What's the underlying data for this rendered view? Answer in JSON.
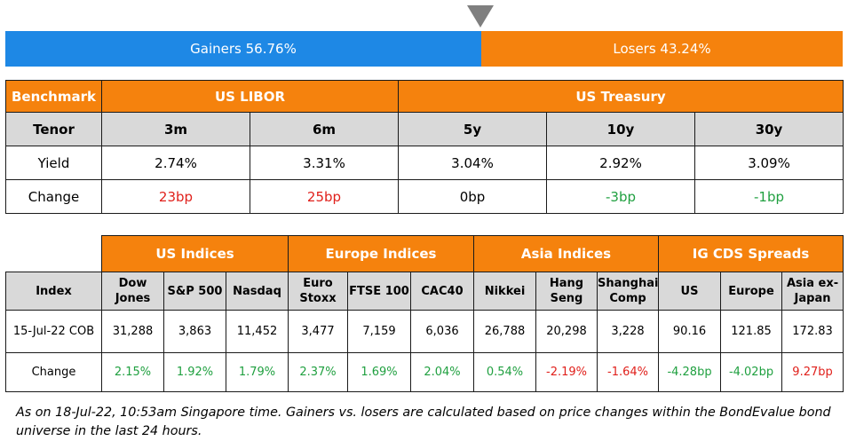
{
  "market_bar": {
    "gainers_label": "Gainers 56.76%",
    "losers_label": "Losers 43.24%",
    "gainers_fraction": 0.5676,
    "gainers_color": "#1e88e5",
    "losers_color": "#f5820d",
    "marker_icon": "triangle-down"
  },
  "rates_table": {
    "headers": {
      "benchmark": "Benchmark",
      "libor": "US LIBOR",
      "treasury": "US Treasury"
    },
    "tenor_label": "Tenor",
    "tenors": [
      "3m",
      "6m",
      "5y",
      "10y",
      "30y"
    ],
    "yield_label": "Yield",
    "yields": [
      "2.74%",
      "3.31%",
      "3.04%",
      "2.92%",
      "3.09%"
    ],
    "change_label": "Change",
    "changes": [
      "23bp",
      "25bp",
      "0bp",
      "-3bp",
      "-1bp"
    ]
  },
  "indices_table": {
    "groups": {
      "us": "US Indices",
      "europe": "Europe Indices",
      "asia": "Asia Indices",
      "cds": "IG CDS Spreads"
    },
    "index_label": "Index",
    "columns": [
      "Dow Jones",
      "S&P 500",
      "Nasdaq",
      "Euro Stoxx",
      "FTSE 100",
      "CAC40",
      "Nikkei",
      "Hang Seng",
      "Shanghai Comp",
      "US",
      "Europe",
      "Asia ex-Japan"
    ],
    "row_date_label": "15-Jul-22 COB",
    "values": [
      "31,288",
      "3,863",
      "11,452",
      "3,477",
      "7,159",
      "6,036",
      "26,788",
      "20,298",
      "3,228",
      "90.16",
      "121.85",
      "172.83"
    ],
    "change_label": "Change",
    "changes": [
      "2.15%",
      "1.92%",
      "1.79%",
      "2.37%",
      "1.69%",
      "2.04%",
      "0.54%",
      "-2.19%",
      "-1.64%",
      "-4.28bp",
      "-4.02bp",
      "9.27bp"
    ]
  },
  "colors": {
    "orange": "#f5820d",
    "blue": "#1e88e5",
    "gray": "#d9d9d9",
    "red": "#e0201b",
    "green": "#20a040"
  },
  "footnote": "As on 18-Jul-22, 10:53am Singapore time. Gainers vs. losers are calculated based on price changes within the BondEvalue bond universe in the last 24 hours."
}
